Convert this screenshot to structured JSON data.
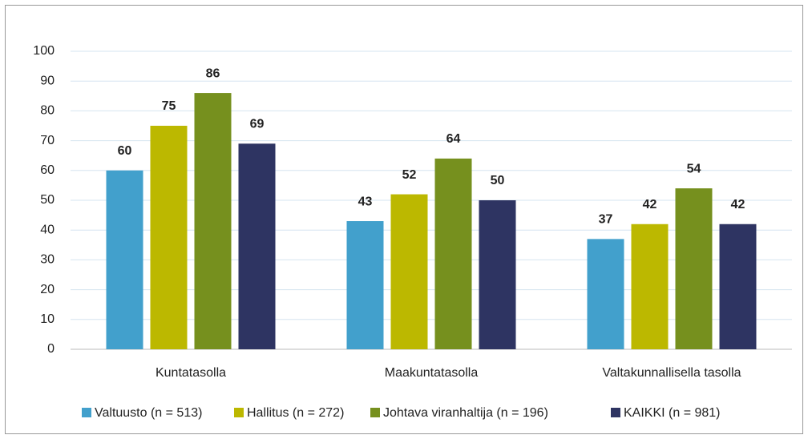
{
  "chart_data": {
    "type": "bar",
    "categories": [
      "Kuntatasolla",
      "Maakuntatasolla",
      "Valtakunnallisella tasolla"
    ],
    "series": [
      {
        "name": "Valtuusto (n = 513)",
        "color": "#42a0cc",
        "values": [
          60,
          43,
          37
        ]
      },
      {
        "name": "Hallitus (n = 272)",
        "color": "#bcb800",
        "values": [
          75,
          52,
          42
        ]
      },
      {
        "name": "Johtava viranhaltija (n = 196)",
        "color": "#76901e",
        "values": [
          86,
          64,
          54
        ]
      },
      {
        "name": "KAIKKI (n = 981)",
        "color": "#2e3462",
        "values": [
          69,
          50,
          42
        ]
      }
    ],
    "ylim": [
      0,
      100
    ],
    "yticks": [
      0,
      10,
      20,
      30,
      40,
      50,
      60,
      70,
      80,
      90,
      100
    ],
    "grid": true,
    "legend": "bottom"
  }
}
